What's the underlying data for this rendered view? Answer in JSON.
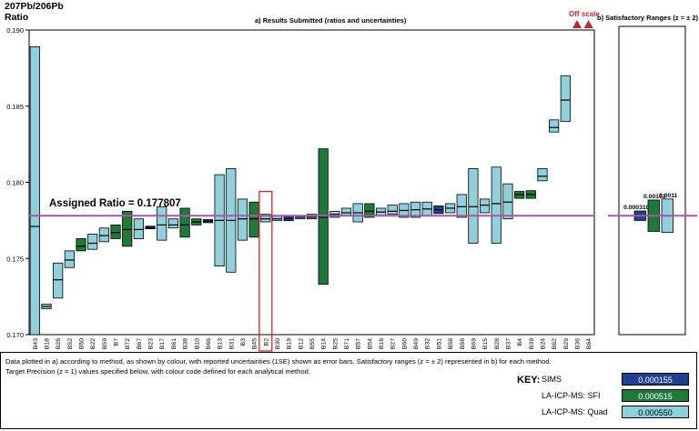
{
  "chart_data": [
    {
      "type": "bar",
      "title": "a) Results Submitted (ratios and uncertainties)",
      "ylabel": "207Pb/206Pb\nRatio",
      "ylim": [
        0.17,
        0.19
      ],
      "yticks": [
        "0.170",
        "0.175",
        "0.180",
        "0.185",
        "0.190"
      ],
      "grid": false,
      "assigned_ratio": 0.177807,
      "assigned_label": "Assigned Ratio = 0.177807",
      "off_scale_label": "Off scale",
      "highlighted_lab": "B2",
      "categories": [
        "B43",
        "B18",
        "B26",
        "B52",
        "B50",
        "B22",
        "B59",
        "B7",
        "B72",
        "B67",
        "B23",
        "B17",
        "B61",
        "B38",
        "B10",
        "B66",
        "B13",
        "B31",
        "B3",
        "B45",
        "B2",
        "B30",
        "B19",
        "B12",
        "B55",
        "B14",
        "B25",
        "B71",
        "B57",
        "B54",
        "B16",
        "B27",
        "B60",
        "B49",
        "B32",
        "B51",
        "B58",
        "B56",
        "B69",
        "B15",
        "B28",
        "B37",
        "B4",
        "B39",
        "B24",
        "B62",
        "B29",
        "B36",
        "B64"
      ],
      "series": [
        {
          "name": "SIMS",
          "method": "SIMS",
          "points": [
            {
              "lab": "B23",
              "value": 0.17703,
              "low": 0.17695,
              "high": 0.17712
            },
            {
              "lab": "B66",
              "value": 0.17745,
              "low": 0.17735,
              "high": 0.17755
            },
            {
              "lab": "B19",
              "value": 0.17762,
              "low": 0.17748,
              "high": 0.17776
            },
            {
              "lab": "B51",
              "value": 0.1782,
              "low": 0.17795,
              "high": 0.17845
            }
          ]
        },
        {
          "name": "LA-ICP-MS: SFI",
          "method": "LA-ICP-MS: SFI",
          "points": [
            {
              "lab": "B50",
              "value": 0.1758,
              "low": 0.1755,
              "high": 0.1763
            },
            {
              "lab": "B7",
              "value": 0.1767,
              "low": 0.1763,
              "high": 0.1772
            },
            {
              "lab": "B72",
              "value": 0.1769,
              "low": 0.1758,
              "high": 0.1781
            },
            {
              "lab": "B38",
              "value": 0.1772,
              "low": 0.1764,
              "high": 0.1783
            },
            {
              "lab": "B10",
              "value": 0.1774,
              "low": 0.1772,
              "high": 0.1776
            },
            {
              "lab": "B45",
              "value": 0.1776,
              "low": 0.1764,
              "high": 0.1787
            },
            {
              "lab": "B14",
              "value": 0.1777,
              "low": 0.1733,
              "high": 0.1822
            },
            {
              "lab": "B54",
              "value": 0.1781,
              "low": 0.1777,
              "high": 0.1786
            },
            {
              "lab": "B4",
              "value": 0.1792,
              "low": 0.17895,
              "high": 0.1794
            },
            {
              "lab": "B39",
              "value": 0.1792,
              "low": 0.17895,
              "high": 0.17945
            }
          ]
        },
        {
          "name": "LA-ICP-MS: Quad",
          "method": "LA-ICP-MS: Quad",
          "points": [
            {
              "lab": "B43",
              "value": 0.1771,
              "low": 0.17,
              "high": 0.1889
            },
            {
              "lab": "B18",
              "value": 0.17185,
              "low": 0.1717,
              "high": 0.172
            },
            {
              "lab": "B26",
              "value": 0.1736,
              "low": 0.1724,
              "high": 0.1747
            },
            {
              "lab": "B52",
              "value": 0.1749,
              "low": 0.1744,
              "high": 0.1755
            },
            {
              "lab": "B22",
              "value": 0.176,
              "low": 0.1756,
              "high": 0.1766
            },
            {
              "lab": "B59",
              "value": 0.1765,
              "low": 0.1761,
              "high": 0.177
            },
            {
              "lab": "B67",
              "value": 0.1769,
              "low": 0.1763,
              "high": 0.1776
            },
            {
              "lab": "B17",
              "value": 0.1772,
              "low": 0.1762,
              "high": 0.1784
            },
            {
              "lab": "B61",
              "value": 0.1772,
              "low": 0.177,
              "high": 0.1776
            },
            {
              "lab": "B13",
              "value": 0.1775,
              "low": 0.1745,
              "high": 0.1805
            },
            {
              "lab": "B31",
              "value": 0.1775,
              "low": 0.1741,
              "high": 0.1809
            },
            {
              "lab": "B3",
              "value": 0.1776,
              "low": 0.1762,
              "high": 0.1789
            },
            {
              "lab": "B2",
              "value": 0.1776,
              "low": 0.1774,
              "high": 0.1779
            },
            {
              "lab": "B30",
              "value": 0.1776,
              "low": 0.1775,
              "high": 0.1778
            },
            {
              "lab": "B12",
              "value": 0.1777,
              "low": 0.1776,
              "high": 0.1778
            },
            {
              "lab": "B55",
              "value": 0.1777,
              "low": 0.1776,
              "high": 0.1779
            },
            {
              "lab": "B25",
              "value": 0.1779,
              "low": 0.1777,
              "high": 0.1781
            },
            {
              "lab": "B71",
              "value": 0.178,
              "low": 0.1778,
              "high": 0.1783
            },
            {
              "lab": "B57",
              "value": 0.178,
              "low": 0.1774,
              "high": 0.1786
            },
            {
              "lab": "B16",
              "value": 0.17805,
              "low": 0.1778,
              "high": 0.1783
            },
            {
              "lab": "B27",
              "value": 0.1781,
              "low": 0.1779,
              "high": 0.1785
            },
            {
              "lab": "B60",
              "value": 0.17815,
              "low": 0.1777,
              "high": 0.1786
            },
            {
              "lab": "B49",
              "value": 0.1782,
              "low": 0.1777,
              "high": 0.1787
            },
            {
              "lab": "B32",
              "value": 0.17825,
              "low": 0.1778,
              "high": 0.1787
            },
            {
              "lab": "B58",
              "value": 0.1783,
              "low": 0.178,
              "high": 0.1786
            },
            {
              "lab": "B56",
              "value": 0.1784,
              "low": 0.1777,
              "high": 0.1792
            },
            {
              "lab": "B69",
              "value": 0.1784,
              "low": 0.176,
              "high": 0.1809
            },
            {
              "lab": "B15",
              "value": 0.1785,
              "low": 0.178,
              "high": 0.1789
            },
            {
              "lab": "B28",
              "value": 0.1786,
              "low": 0.176,
              "high": 0.181
            },
            {
              "lab": "B37",
              "value": 0.1787,
              "low": 0.1776,
              "high": 0.1799
            },
            {
              "lab": "B24",
              "value": 0.1804,
              "low": 0.1801,
              "high": 0.1809
            },
            {
              "lab": "B62",
              "value": 0.1836,
              "low": 0.1833,
              "high": 0.1841
            },
            {
              "lab": "B29",
              "value": 0.1854,
              "low": 0.184,
              "high": 0.187
            }
          ]
        }
      ],
      "off_scale_labs": [
        "B36",
        "B64"
      ]
    },
    {
      "type": "bar",
      "title": "b) Satisfactory Ranges (z = ± 2)",
      "ylim": [
        0.17,
        0.19
      ],
      "assigned_ratio": 0.177807,
      "ranges": [
        {
          "method": "SIMS",
          "label": "0.000310",
          "half_range": 0.00031
        },
        {
          "method": "LA-ICP-MS: SFI",
          "label": "0.00103",
          "half_range": 0.00103
        },
        {
          "method": "LA-ICP-MS: Quad",
          "label": "0.0011",
          "half_range": 0.0011
        }
      ]
    }
  ],
  "colors": {
    "SIMS": "#1f3f8f",
    "LA-ICP-MS: SFI": "#1f7a3a",
    "LA-ICP-MS: Quad": "#8fd0da",
    "assigned_line": "#a05aa6",
    "highlight": "#d8261f",
    "off_scale": "#c0282e"
  },
  "footer": {
    "line1": "Data plotted in a) according to method, as shown by colour, with reported uncertainties (1SE) shown as error bars. Satisfactory ranges (z = ± 2) represented in b) for each method.",
    "line2": "Target Precision (z = 1) values specified below, with colour code defined for each analytical method.",
    "key_title": "KEY:",
    "key": [
      {
        "label": "SIMS",
        "value": "0.000155"
      },
      {
        "label": "LA-ICP-MS: SFI",
        "value": "0.000515"
      },
      {
        "label": "LA-ICP-MS: Quad",
        "value": "0.000550"
      }
    ]
  }
}
